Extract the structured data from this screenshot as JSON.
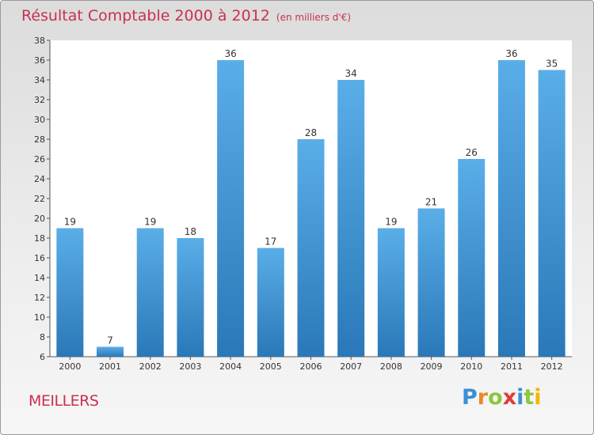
{
  "chart_data": {
    "type": "bar",
    "title": "Résultat Comptable 2000 à 2012",
    "subtitle": "(en milliers d'€)",
    "categories": [
      "2000",
      "2001",
      "2002",
      "2003",
      "2004",
      "2005",
      "2006",
      "2007",
      "2008",
      "2009",
      "2010",
      "2011",
      "2012"
    ],
    "values": [
      19,
      7,
      19,
      18,
      36,
      17,
      28,
      34,
      19,
      21,
      26,
      36,
      35
    ],
    "ylim": [
      6,
      38
    ],
    "yticks": [
      6,
      8,
      10,
      12,
      14,
      16,
      18,
      20,
      22,
      24,
      26,
      28,
      30,
      32,
      34,
      36,
      38
    ],
    "xlabel": "",
    "ylabel": "",
    "grid": false,
    "bar_color": "#4a9ad8"
  },
  "location": "MEILLERS",
  "brand": {
    "name": "Proxiti",
    "letters": [
      {
        "ch": "P",
        "color": "#3b8fd6"
      },
      {
        "ch": "r",
        "color": "#e8892b"
      },
      {
        "ch": "o",
        "color": "#8cc63f"
      },
      {
        "ch": "x",
        "color": "#e03a3a"
      },
      {
        "ch": "i",
        "color": "#3b8fd6"
      },
      {
        "ch": "t",
        "color": "#8cc63f"
      },
      {
        "ch": "i",
        "color": "#f2b600"
      }
    ]
  }
}
